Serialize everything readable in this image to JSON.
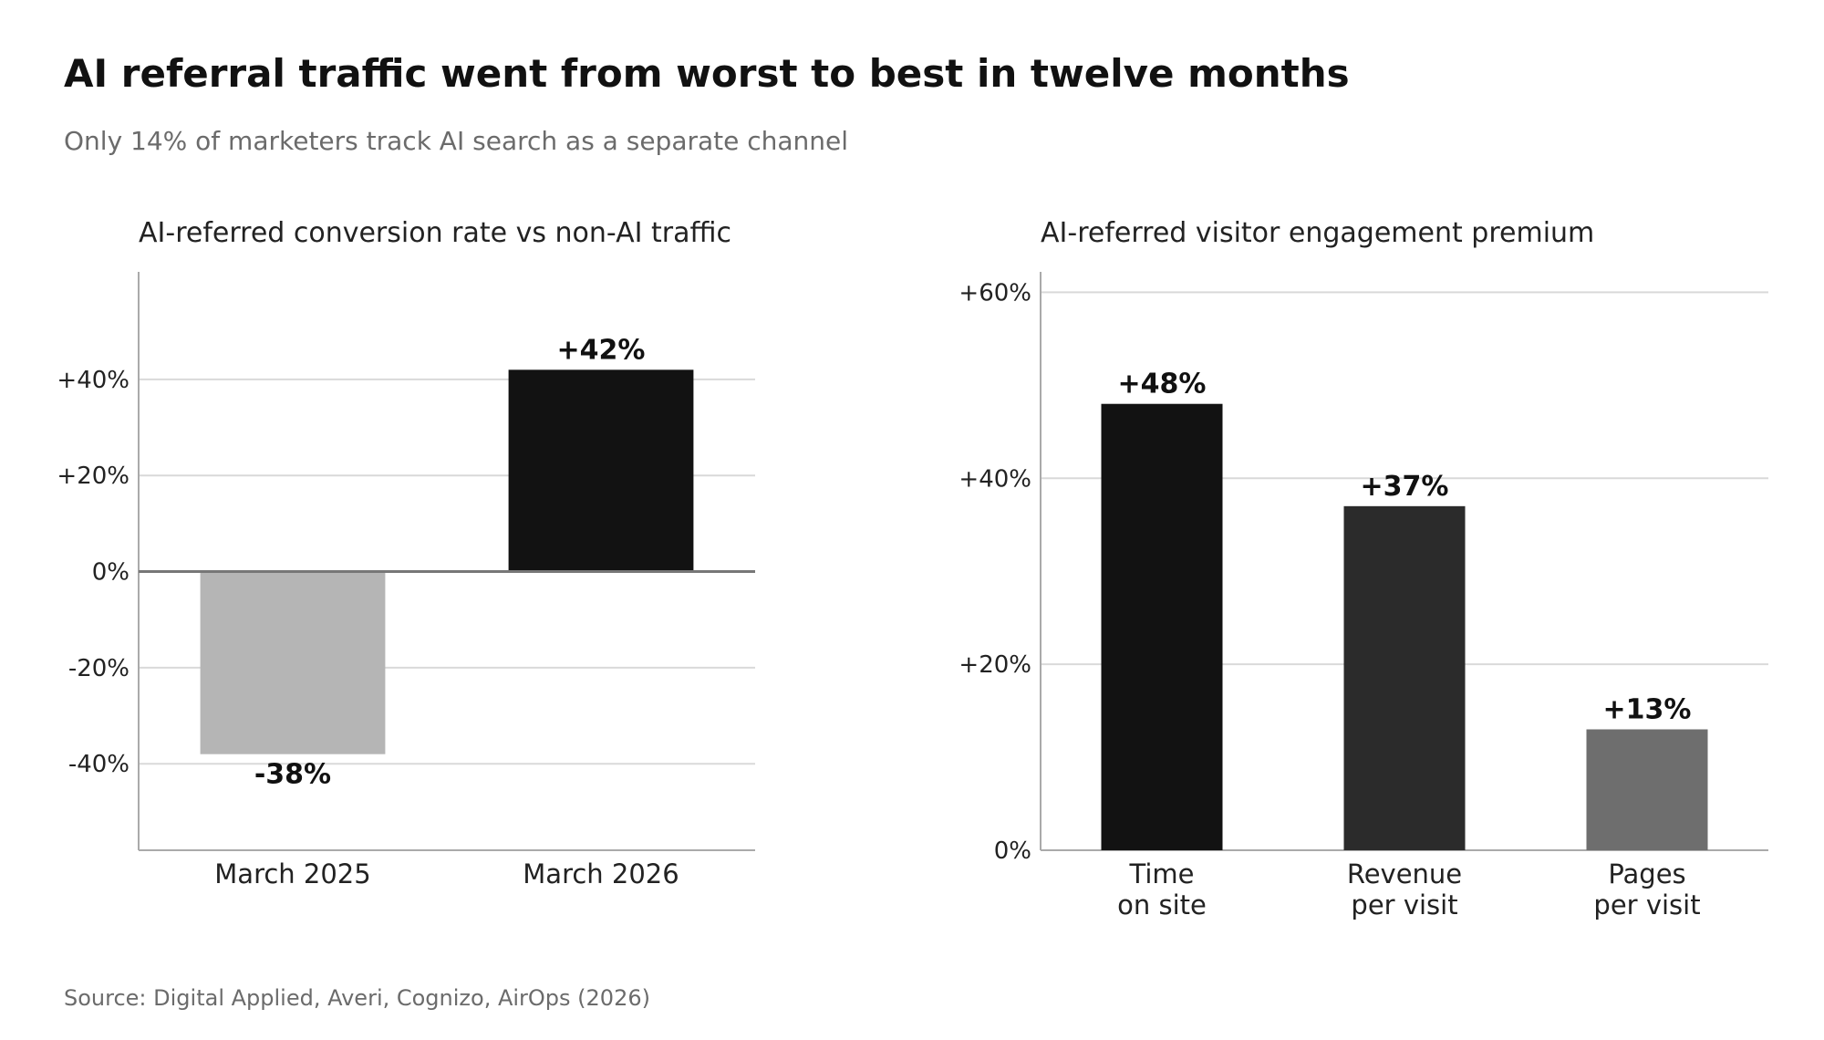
{
  "header": {
    "title": "AI referral traffic went from worst to best in twelve months",
    "subtitle": "Only 14% of marketers track AI search as a separate channel"
  },
  "footer": {
    "source": "Source: Digital Applied, Averi, Cognizo, AirOps (2026)"
  },
  "chart_data": [
    {
      "type": "bar",
      "title": "AI-referred conversion rate vs non-AI traffic",
      "categories": [
        "March 2025",
        "March 2026"
      ],
      "values": [
        -38,
        42
      ],
      "data_labels": [
        "-38%",
        "+42%"
      ],
      "colors": [
        "#b5b5b5",
        "#121212"
      ],
      "ylim": [
        -58,
        62
      ],
      "yticks": [
        -40,
        -20,
        0,
        20,
        40
      ],
      "ytick_labels": [
        "-40%",
        "-20%",
        "0%",
        "+20%",
        "+40%"
      ],
      "grid": true,
      "zero_line": true
    },
    {
      "type": "bar",
      "title": "AI-referred visitor engagement premium",
      "categories": [
        [
          "Time",
          "on site"
        ],
        [
          "Revenue",
          "per visit"
        ],
        [
          "Pages",
          "per visit"
        ]
      ],
      "values": [
        48,
        37,
        13
      ],
      "data_labels": [
        "+48%",
        "+37%",
        "+13%"
      ],
      "colors": [
        "#121212",
        "#2b2b2b",
        "#6e6e6e"
      ],
      "ylim": [
        0,
        62
      ],
      "yticks": [
        0,
        20,
        40,
        60
      ],
      "ytick_labels": [
        "0%",
        "+20%",
        "+40%",
        "+60%"
      ],
      "grid": true
    }
  ],
  "colors": {
    "grid": "#d9d9d9",
    "axis": "#aaaaaa",
    "zero_line": "#777777",
    "text": "#222222",
    "muted": "#6b6b6b"
  }
}
